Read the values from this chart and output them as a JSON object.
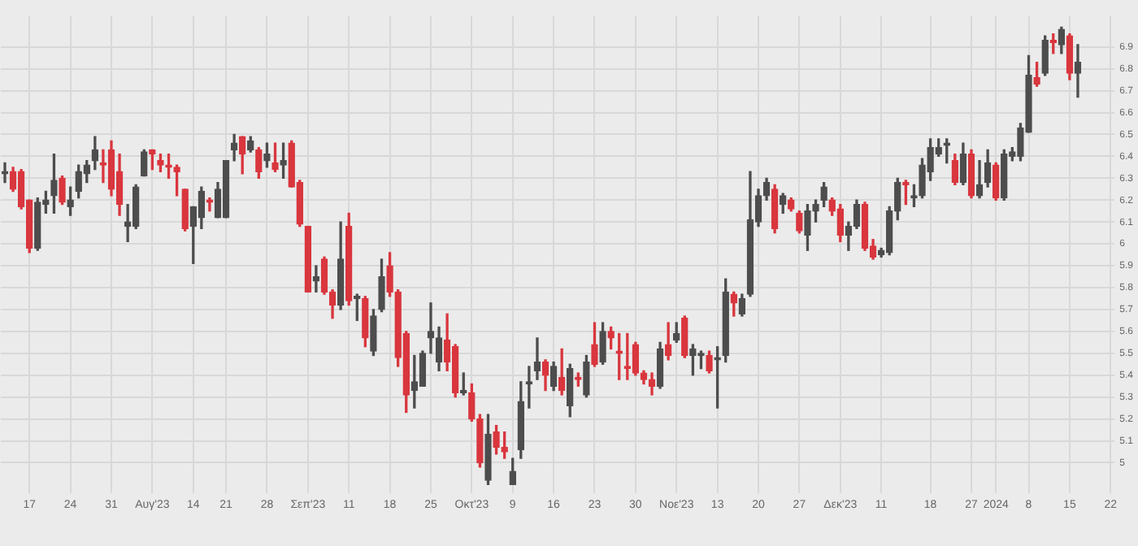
{
  "chart_data": {
    "type": "candlestick",
    "grid": true,
    "ylim": [
      4.86,
      7.04
    ],
    "yticks": [
      5,
      5.1,
      5.2,
      5.3,
      5.4,
      5.5,
      5.6,
      5.7,
      5.8,
      5.9,
      6,
      6.1,
      6.2,
      6.3,
      6.4,
      6.5,
      6.6,
      6.7,
      6.8,
      6.9
    ],
    "categories": [
      null,
      null,
      null,
      "17",
      null,
      null,
      null,
      null,
      "24",
      null,
      null,
      null,
      null,
      "31",
      null,
      null,
      null,
      null,
      "Αυγ'23",
      null,
      null,
      null,
      null,
      "14",
      null,
      null,
      null,
      "21",
      null,
      null,
      null,
      null,
      "28",
      null,
      null,
      null,
      null,
      "Σεπ'23",
      null,
      null,
      null,
      null,
      "11",
      null,
      null,
      null,
      null,
      "18",
      null,
      null,
      null,
      null,
      "25",
      null,
      null,
      null,
      null,
      "Οκτ'23",
      null,
      null,
      null,
      null,
      "9",
      null,
      null,
      null,
      null,
      "16",
      null,
      null,
      null,
      null,
      "23",
      null,
      null,
      null,
      null,
      "30",
      null,
      null,
      null,
      null,
      "Νοε'23",
      null,
      null,
      null,
      null,
      "13",
      null,
      null,
      null,
      null,
      "20",
      null,
      null,
      null,
      null,
      "27",
      null,
      null,
      null,
      null,
      "Δεκ'23",
      null,
      null,
      null,
      null,
      "11",
      null,
      null,
      null,
      null,
      null,
      "18",
      null,
      null,
      null,
      null,
      "27",
      null,
      null,
      "2024",
      null,
      null,
      null,
      "8",
      null,
      null,
      null,
      null,
      "15",
      null,
      null,
      null,
      null,
      "22"
    ],
    "ohlc": [
      [
        6.32,
        6.37,
        6.28,
        6.33
      ],
      [
        6.33,
        6.35,
        6.24,
        6.25
      ],
      [
        6.33,
        6.34,
        6.16,
        6.17
      ],
      [
        6.2,
        6.2,
        5.96,
        5.98
      ],
      [
        5.98,
        6.21,
        5.97,
        6.19
      ],
      [
        6.18,
        6.24,
        6.14,
        6.2
      ],
      [
        6.22,
        6.41,
        6.14,
        6.29
      ],
      [
        6.3,
        6.31,
        6.18,
        6.19
      ],
      [
        6.17,
        6.26,
        6.13,
        6.2
      ],
      [
        6.24,
        6.36,
        6.21,
        6.33
      ],
      [
        6.32,
        6.38,
        6.28,
        6.36
      ],
      [
        6.38,
        6.49,
        6.34,
        6.43
      ],
      [
        6.37,
        6.43,
        6.28,
        6.36
      ],
      [
        6.43,
        6.47,
        6.22,
        6.25
      ],
      [
        6.33,
        6.41,
        6.13,
        6.18
      ],
      [
        6.08,
        6.18,
        6.01,
        6.1
      ],
      [
        6.08,
        6.27,
        6.07,
        6.26
      ],
      [
        6.31,
        6.43,
        6.31,
        6.42
      ],
      [
        6.43,
        6.43,
        6.34,
        6.41
      ],
      [
        6.38,
        6.41,
        6.33,
        6.36
      ],
      [
        6.36,
        6.41,
        6.3,
        6.35
      ],
      [
        6.35,
        6.36,
        6.22,
        6.33
      ],
      [
        6.25,
        6.25,
        6.06,
        6.07
      ],
      [
        6.08,
        6.17,
        5.91,
        6.17
      ],
      [
        6.12,
        6.26,
        6.07,
        6.24
      ],
      [
        6.2,
        6.21,
        6.15,
        6.19
      ],
      [
        6.12,
        6.28,
        6.12,
        6.25
      ],
      [
        6.12,
        6.38,
        6.12,
        6.38
      ],
      [
        6.43,
        6.5,
        6.38,
        6.46
      ],
      [
        6.49,
        6.49,
        6.32,
        6.41
      ],
      [
        6.43,
        6.49,
        6.42,
        6.47
      ],
      [
        6.43,
        6.44,
        6.3,
        6.33
      ],
      [
        6.38,
        6.46,
        6.35,
        6.41
      ],
      [
        6.37,
        6.46,
        6.33,
        6.34
      ],
      [
        6.36,
        6.46,
        6.3,
        6.38
      ],
      [
        6.46,
        6.47,
        6.26,
        6.26
      ],
      [
        6.28,
        6.29,
        6.08,
        6.09
      ],
      [
        6.08,
        6.08,
        5.78,
        5.78
      ],
      [
        5.83,
        5.9,
        5.78,
        5.85
      ],
      [
        5.93,
        5.94,
        5.77,
        5.78
      ],
      [
        5.78,
        5.79,
        5.66,
        5.72
      ],
      [
        5.72,
        6.1,
        5.7,
        5.93
      ],
      [
        6.08,
        6.14,
        5.72,
        5.74
      ],
      [
        5.75,
        5.77,
        5.65,
        5.76
      ],
      [
        5.75,
        5.76,
        5.53,
        5.57
      ],
      [
        5.51,
        5.7,
        5.49,
        5.67
      ],
      [
        5.7,
        5.93,
        5.69,
        5.85
      ],
      [
        5.9,
        5.96,
        5.76,
        5.78
      ],
      [
        5.78,
        5.79,
        5.44,
        5.48
      ],
      [
        5.59,
        5.6,
        5.23,
        5.31
      ],
      [
        5.33,
        5.49,
        5.25,
        5.37
      ],
      [
        5.35,
        5.51,
        5.35,
        5.5
      ],
      [
        5.57,
        5.73,
        5.5,
        5.6
      ],
      [
        5.46,
        5.62,
        5.42,
        5.57
      ],
      [
        5.56,
        5.68,
        5.42,
        5.46
      ],
      [
        5.53,
        5.54,
        5.3,
        5.32
      ],
      [
        5.32,
        5.41,
        5.31,
        5.33
      ],
      [
        5.32,
        5.36,
        5.19,
        5.2
      ],
      [
        5.2,
        5.22,
        4.98,
        5.0
      ],
      [
        4.92,
        5.22,
        4.9,
        5.13
      ],
      [
        5.14,
        5.17,
        5.04,
        5.07
      ],
      [
        5.07,
        5.14,
        5.02,
        5.05
      ],
      [
        4.9,
        5.02,
        4.9,
        4.96
      ],
      [
        5.06,
        5.37,
        5.02,
        5.28
      ],
      [
        5.36,
        5.44,
        5.25,
        5.37
      ],
      [
        5.42,
        5.57,
        5.38,
        5.46
      ],
      [
        5.46,
        5.47,
        5.33,
        5.4
      ],
      [
        5.35,
        5.46,
        5.33,
        5.44
      ],
      [
        5.39,
        5.52,
        5.31,
        5.33
      ],
      [
        5.26,
        5.45,
        5.21,
        5.43
      ],
      [
        5.39,
        5.41,
        5.35,
        5.38
      ],
      [
        5.31,
        5.49,
        5.3,
        5.46
      ],
      [
        5.54,
        5.64,
        5.44,
        5.45
      ],
      [
        5.46,
        5.64,
        5.45,
        5.6
      ],
      [
        5.6,
        5.62,
        5.52,
        5.57
      ],
      [
        5.51,
        5.59,
        5.38,
        5.5
      ],
      [
        5.44,
        5.59,
        5.38,
        5.43
      ],
      [
        5.54,
        5.55,
        5.4,
        5.41
      ],
      [
        5.41,
        5.42,
        5.36,
        5.38
      ],
      [
        5.38,
        5.41,
        5.31,
        5.35
      ],
      [
        5.35,
        5.55,
        5.34,
        5.52
      ],
      [
        5.54,
        5.64,
        5.47,
        5.49
      ],
      [
        5.56,
        5.64,
        5.55,
        5.59
      ],
      [
        5.66,
        5.67,
        5.48,
        5.49
      ],
      [
        5.49,
        5.54,
        5.4,
        5.52
      ],
      [
        5.49,
        5.51,
        5.43,
        5.5
      ],
      [
        5.49,
        5.51,
        5.41,
        5.42
      ],
      [
        5.47,
        5.53,
        5.25,
        5.48
      ],
      [
        5.49,
        5.84,
        5.46,
        5.78
      ],
      [
        5.77,
        5.78,
        5.67,
        5.73
      ],
      [
        5.68,
        5.77,
        5.67,
        5.75
      ],
      [
        5.77,
        6.33,
        5.76,
        6.11
      ],
      [
        6.1,
        6.25,
        6.08,
        6.22
      ],
      [
        6.22,
        6.3,
        6.2,
        6.28
      ],
      [
        6.25,
        6.27,
        6.05,
        6.07
      ],
      [
        6.18,
        6.23,
        6.14,
        6.22
      ],
      [
        6.2,
        6.21,
        6.15,
        6.16
      ],
      [
        6.14,
        6.15,
        6.05,
        6.06
      ],
      [
        6.04,
        6.18,
        5.97,
        6.15
      ],
      [
        6.15,
        6.2,
        6.1,
        6.18
      ],
      [
        6.2,
        6.28,
        6.17,
        6.26
      ],
      [
        6.2,
        6.21,
        6.13,
        6.15
      ],
      [
        6.16,
        6.18,
        6.01,
        6.04
      ],
      [
        6.04,
        6.1,
        5.97,
        6.08
      ],
      [
        6.08,
        6.2,
        6.07,
        6.18
      ],
      [
        6.18,
        6.19,
        5.97,
        5.98
      ],
      [
        5.99,
        6.02,
        5.93,
        5.94
      ],
      [
        5.95,
        5.98,
        5.94,
        5.97
      ],
      [
        5.96,
        6.17,
        5.95,
        6.15
      ],
      [
        6.15,
        6.3,
        6.11,
        6.28
      ],
      [
        6.28,
        6.29,
        6.18,
        6.27
      ],
      [
        6.21,
        6.27,
        6.17,
        6.22
      ],
      [
        6.22,
        6.39,
        6.21,
        6.36
      ],
      [
        6.33,
        6.48,
        6.29,
        6.44
      ],
      [
        6.41,
        6.48,
        6.4,
        6.44
      ],
      [
        6.45,
        6.48,
        6.37,
        6.46
      ],
      [
        6.38,
        6.41,
        6.27,
        6.28
      ],
      [
        6.28,
        6.46,
        6.27,
        6.41
      ],
      [
        6.41,
        6.43,
        6.21,
        6.22
      ],
      [
        6.22,
        6.38,
        6.21,
        6.27
      ],
      [
        6.28,
        6.43,
        6.26,
        6.37
      ],
      [
        6.36,
        6.37,
        6.2,
        6.21
      ],
      [
        6.21,
        6.43,
        6.2,
        6.41
      ],
      [
        6.4,
        6.44,
        6.38,
        6.42
      ],
      [
        6.4,
        6.55,
        6.38,
        6.53
      ],
      [
        6.51,
        6.86,
        6.51,
        6.77
      ],
      [
        6.76,
        6.83,
        6.72,
        6.73
      ],
      [
        6.78,
        6.95,
        6.77,
        6.93
      ],
      [
        6.93,
        6.96,
        6.87,
        6.92
      ],
      [
        6.91,
        6.99,
        6.87,
        6.98
      ],
      [
        6.95,
        6.96,
        6.75,
        6.78
      ],
      [
        6.78,
        6.91,
        6.67,
        6.83
      ],
      null,
      null,
      null,
      null
    ],
    "colors": [
      "#4d4d4d",
      "#d9363e",
      "#d9363e",
      "#d9363e",
      "#4d4d4d",
      "#4d4d4d",
      "#4d4d4d",
      "#d9363e",
      "#4d4d4d",
      "#4d4d4d",
      "#4d4d4d",
      "#4d4d4d",
      "#d9363e",
      "#d9363e",
      "#d9363e",
      "#4d4d4d",
      "#4d4d4d",
      "#4d4d4d",
      "#d9363e",
      "#d9363e",
      "#d9363e",
      "#d9363e",
      "#d9363e",
      "#4d4d4d",
      "#4d4d4d",
      "#d9363e",
      "#4d4d4d",
      "#4d4d4d",
      "#4d4d4d",
      "#d9363e",
      "#4d4d4d",
      "#d9363e",
      "#4d4d4d",
      "#d9363e",
      "#4d4d4d",
      "#d9363e",
      "#d9363e",
      "#d9363e",
      "#4d4d4d",
      "#d9363e",
      "#d9363e",
      "#4d4d4d",
      "#d9363e",
      "#4d4d4d",
      "#d9363e",
      "#4d4d4d",
      "#4d4d4d",
      "#d9363e",
      "#d9363e",
      "#d9363e",
      "#4d4d4d",
      "#4d4d4d",
      "#4d4d4d",
      "#4d4d4d",
      "#d9363e",
      "#d9363e",
      "#4d4d4d",
      "#d9363e",
      "#d9363e",
      "#4d4d4d",
      "#d9363e",
      "#d9363e",
      "#4d4d4d",
      "#4d4d4d",
      "#4d4d4d",
      "#4d4d4d",
      "#d9363e",
      "#4d4d4d",
      "#d9363e",
      "#4d4d4d",
      "#d9363e",
      "#4d4d4d",
      "#d9363e",
      "#4d4d4d",
      "#d9363e",
      "#d9363e",
      "#d9363e",
      "#d9363e",
      "#d9363e",
      "#d9363e",
      "#4d4d4d",
      "#d9363e",
      "#4d4d4d",
      "#d9363e",
      "#4d4d4d",
      "#4d4d4d",
      "#d9363e",
      "#4d4d4d",
      "#4d4d4d",
      "#d9363e",
      "#4d4d4d",
      "#4d4d4d",
      "#4d4d4d",
      "#4d4d4d",
      "#d9363e",
      "#4d4d4d",
      "#d9363e",
      "#d9363e",
      "#4d4d4d",
      "#4d4d4d",
      "#4d4d4d",
      "#d9363e",
      "#d9363e",
      "#4d4d4d",
      "#4d4d4d",
      "#d9363e",
      "#d9363e",
      "#4d4d4d",
      "#4d4d4d",
      "#4d4d4d",
      "#d9363e",
      "#4d4d4d",
      "#4d4d4d",
      "#4d4d4d",
      "#4d4d4d",
      "#4d4d4d",
      "#d9363e",
      "#4d4d4d",
      "#d9363e",
      "#4d4d4d",
      "#4d4d4d",
      "#d9363e",
      "#4d4d4d",
      "#4d4d4d",
      "#4d4d4d",
      "#4d4d4d",
      "#d9363e",
      "#4d4d4d",
      "#d9363e",
      "#4d4d4d",
      "#d9363e",
      "#4d4d4d",
      null,
      null,
      null,
      null
    ]
  }
}
